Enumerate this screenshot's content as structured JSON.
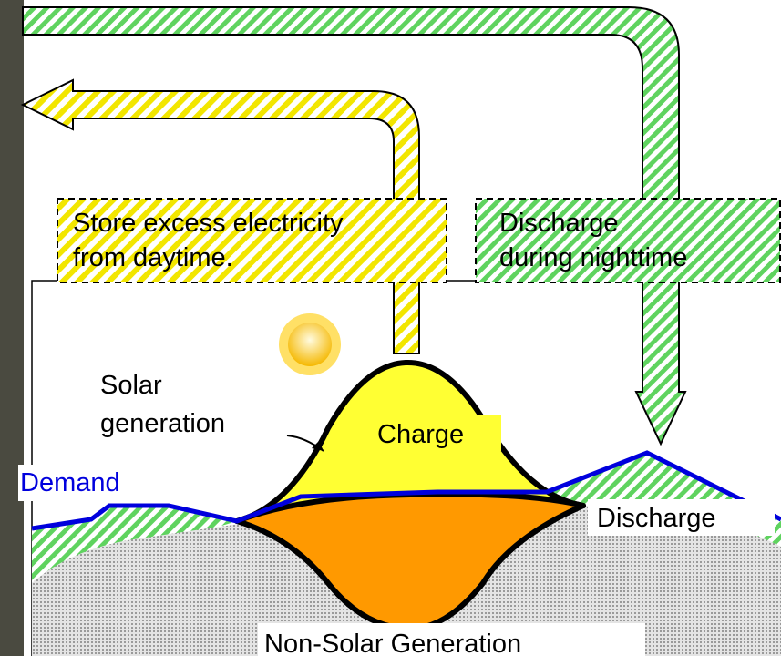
{
  "labels": {
    "store_box": {
      "line1": "Store excess electricity",
      "line2": "from daytime."
    },
    "discharge_box": {
      "line1": "Discharge",
      "line2": "during nighttime"
    },
    "solar": {
      "line1": "Solar",
      "line2": "generation"
    },
    "charge": "Charge",
    "demand": "Demand",
    "discharge": "Discharge",
    "non_solar": "Non-Solar Generation"
  }
}
